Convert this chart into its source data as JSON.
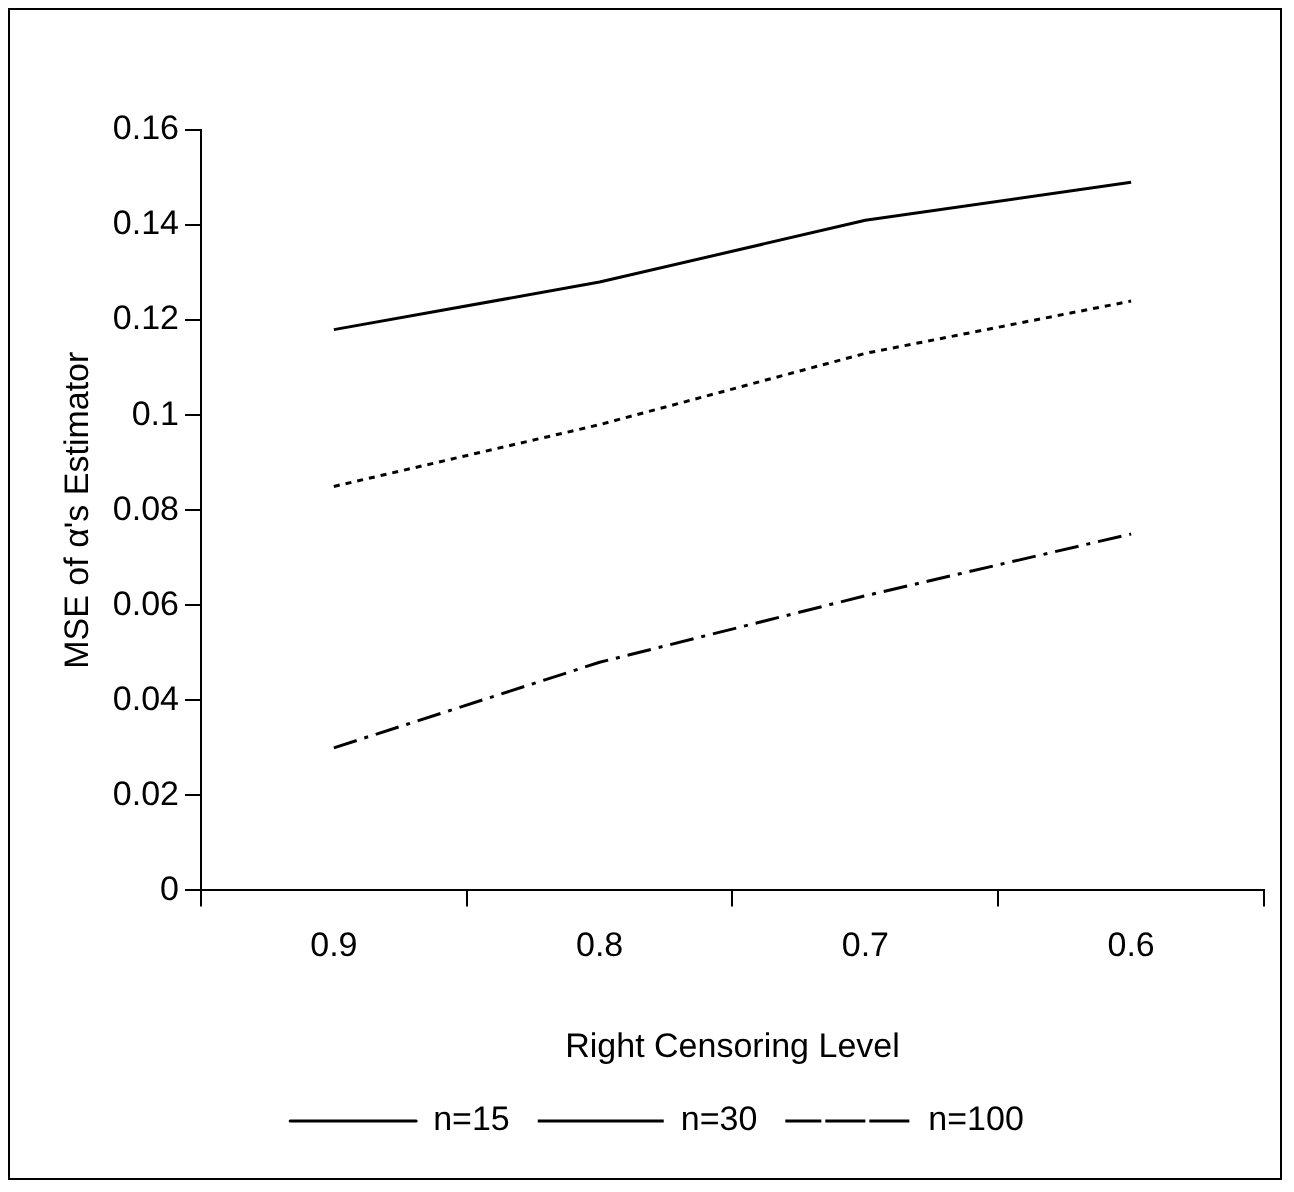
{
  "chart_data": {
    "type": "line",
    "xlabel": "Right Censoring Level",
    "ylabel": "MSE of α's Estimator",
    "categories": [
      "0.9",
      "0.8",
      "0.7",
      "0.6"
    ],
    "series": [
      {
        "name": "n=15",
        "color": "#000000",
        "line_style": "solid",
        "values": [
          0.118,
          0.128,
          0.141,
          0.149
        ]
      },
      {
        "name": "n=30",
        "color": "#000000",
        "line_style": "dotted",
        "values": [
          0.085,
          0.098,
          0.113,
          0.124
        ]
      },
      {
        "name": "n=100",
        "color": "#000000",
        "line_style": "dashdot",
        "values": [
          0.03,
          0.048,
          0.062,
          0.075
        ]
      }
    ],
    "ylim": [
      0,
      0.16
    ],
    "yticks": [
      0,
      0.02,
      0.04,
      0.06,
      0.08,
      0.1,
      0.12,
      0.14,
      0.16
    ],
    "grid": false,
    "legend": "bottom",
    "marker": "none"
  }
}
